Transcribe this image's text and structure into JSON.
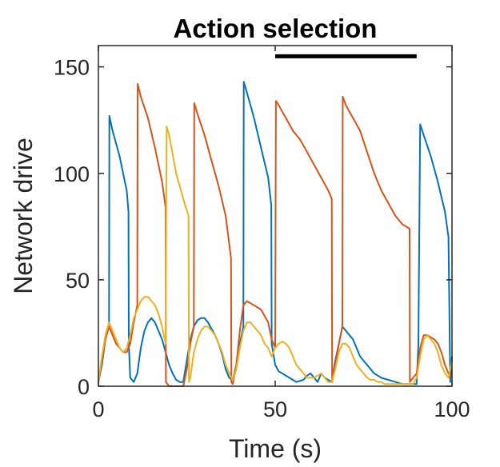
{
  "chart_data": {
    "type": "line",
    "title": "Action selection",
    "xlabel": "Time (s)",
    "ylabel": "Network drive",
    "xlim": [
      0,
      100
    ],
    "ylim": [
      0,
      160
    ],
    "xticks": [
      "0",
      "50",
      "100"
    ],
    "yticks": [
      "0",
      "50",
      "100",
      "150"
    ],
    "grid": false,
    "legend": "none",
    "annotation_bar": {
      "x": [
        50,
        90
      ],
      "y": 155
    },
    "series": [
      {
        "color": "#0072BD",
        "points": [
          [
            0,
            2
          ],
          [
            1,
            10
          ],
          [
            2,
            22
          ],
          [
            3,
            30
          ],
          [
            3.1,
            127
          ],
          [
            4,
            120
          ],
          [
            6,
            108
          ],
          [
            7,
            100
          ],
          [
            8,
            92
          ],
          [
            8.5,
            82
          ],
          [
            8.6,
            20
          ],
          [
            9,
            4
          ],
          [
            10,
            2
          ],
          [
            11,
            6
          ],
          [
            12,
            18
          ],
          [
            13,
            26
          ],
          [
            14,
            30
          ],
          [
            15,
            32
          ],
          [
            16,
            30
          ],
          [
            17,
            26
          ],
          [
            18,
            22
          ],
          [
            19,
            16
          ],
          [
            20,
            10
          ],
          [
            21,
            6
          ],
          [
            22,
            3
          ],
          [
            23,
            2
          ],
          [
            24,
            2
          ],
          [
            25,
            12
          ],
          [
            26,
            22
          ],
          [
            27,
            28
          ],
          [
            28,
            31
          ],
          [
            29,
            32
          ],
          [
            30,
            32
          ],
          [
            31,
            30
          ],
          [
            32,
            27
          ],
          [
            33,
            24
          ],
          [
            34,
            20
          ],
          [
            35,
            15
          ],
          [
            36,
            8
          ],
          [
            37,
            4
          ],
          [
            38,
            3
          ],
          [
            39,
            10
          ],
          [
            40,
            20
          ],
          [
            41,
            28
          ],
          [
            41.1,
            143
          ],
          [
            42,
            138
          ],
          [
            44,
            126
          ],
          [
            46,
            112
          ],
          [
            48,
            98
          ],
          [
            48.9,
            85
          ],
          [
            49,
            20
          ],
          [
            50,
            10
          ],
          [
            51,
            7
          ],
          [
            52,
            6
          ],
          [
            53,
            5
          ],
          [
            54,
            4
          ],
          [
            55,
            3
          ],
          [
            56,
            2
          ],
          [
            58,
            3
          ],
          [
            59,
            5
          ],
          [
            60,
            6
          ],
          [
            61,
            4
          ],
          [
            62,
            2
          ],
          [
            63,
            6
          ],
          [
            64,
            4
          ],
          [
            65,
            3
          ],
          [
            66,
            2
          ],
          [
            67,
            12
          ],
          [
            68,
            20
          ],
          [
            69,
            28
          ],
          [
            70,
            26
          ],
          [
            71,
            24
          ],
          [
            72,
            22
          ],
          [
            73,
            18
          ],
          [
            74,
            14
          ],
          [
            75,
            12
          ],
          [
            76,
            10
          ],
          [
            77,
            8
          ],
          [
            78,
            6
          ],
          [
            79,
            5
          ],
          [
            80,
            4
          ],
          [
            82,
            3
          ],
          [
            84,
            2
          ],
          [
            86,
            1
          ],
          [
            88,
            1
          ],
          [
            89,
            1
          ],
          [
            90,
            1
          ],
          [
            90.5,
            20
          ],
          [
            91,
            123
          ],
          [
            92,
            118
          ],
          [
            94,
            108
          ],
          [
            96,
            96
          ],
          [
            98,
            82
          ],
          [
            99,
            70
          ],
          [
            99.5,
            2
          ],
          [
            100,
            14
          ]
        ]
      },
      {
        "color": "#D95319",
        "points": [
          [
            0,
            2
          ],
          [
            1,
            12
          ],
          [
            2,
            22
          ],
          [
            3,
            28
          ],
          [
            4,
            24
          ],
          [
            5,
            20
          ],
          [
            6,
            18
          ],
          [
            7,
            16
          ],
          [
            8,
            16
          ],
          [
            9,
            20
          ],
          [
            10,
            30
          ],
          [
            11,
            38
          ],
          [
            11.1,
            142
          ],
          [
            12,
            136
          ],
          [
            14,
            126
          ],
          [
            16,
            112
          ],
          [
            18,
            96
          ],
          [
            19,
            84
          ],
          [
            19.1,
            2
          ],
          [
            20,
            0
          ],
          [
            22,
            0
          ],
          [
            24,
            0
          ],
          [
            25,
            8
          ],
          [
            26,
            20
          ],
          [
            27,
            28
          ],
          [
            27.1,
            133
          ],
          [
            28,
            128
          ],
          [
            30,
            118
          ],
          [
            32,
            106
          ],
          [
            34,
            94
          ],
          [
            36,
            80
          ],
          [
            37.5,
            60
          ],
          [
            37.6,
            2
          ],
          [
            38,
            1
          ],
          [
            39,
            10
          ],
          [
            40,
            26
          ],
          [
            41,
            38
          ],
          [
            42,
            40
          ],
          [
            44,
            38
          ],
          [
            46,
            36
          ],
          [
            48,
            30
          ],
          [
            49,
            22
          ],
          [
            50,
            18
          ],
          [
            50.2,
            134
          ],
          [
            51,
            132
          ],
          [
            53,
            126
          ],
          [
            55,
            120
          ],
          [
            57,
            116
          ],
          [
            59,
            110
          ],
          [
            61,
            104
          ],
          [
            63,
            98
          ],
          [
            65,
            92
          ],
          [
            66,
            88
          ],
          [
            66.1,
            2
          ],
          [
            67,
            10
          ],
          [
            68,
            20
          ],
          [
            69,
            28
          ],
          [
            69.1,
            136
          ],
          [
            70,
            132
          ],
          [
            72,
            126
          ],
          [
            74,
            120
          ],
          [
            76,
            110
          ],
          [
            78,
            100
          ],
          [
            80,
            92
          ],
          [
            82,
            86
          ],
          [
            84,
            80
          ],
          [
            86,
            76
          ],
          [
            87,
            75
          ],
          [
            88,
            74
          ],
          [
            88.1,
            2
          ],
          [
            89,
            4
          ],
          [
            90,
            6
          ],
          [
            91,
            18
          ],
          [
            92,
            24
          ],
          [
            93,
            24
          ],
          [
            94,
            23
          ],
          [
            95,
            22
          ],
          [
            96,
            20
          ],
          [
            97,
            16
          ],
          [
            98,
            10
          ],
          [
            99,
            6
          ],
          [
            100,
            4
          ]
        ]
      },
      {
        "color": "#EDB120",
        "points": [
          [
            0,
            2
          ],
          [
            1,
            14
          ],
          [
            2,
            24
          ],
          [
            3,
            30
          ],
          [
            4,
            26
          ],
          [
            5,
            22
          ],
          [
            6,
            18
          ],
          [
            7,
            16
          ],
          [
            8,
            18
          ],
          [
            9,
            24
          ],
          [
            10,
            32
          ],
          [
            11,
            36
          ],
          [
            12,
            40
          ],
          [
            13,
            42
          ],
          [
            14,
            42
          ],
          [
            15,
            40
          ],
          [
            16,
            38
          ],
          [
            17,
            34
          ],
          [
            18,
            28
          ],
          [
            19,
            20
          ],
          [
            19.3,
            122
          ],
          [
            20,
            118
          ],
          [
            22,
            100
          ],
          [
            24,
            88
          ],
          [
            25.5,
            80
          ],
          [
            25.6,
            2
          ],
          [
            26,
            4
          ],
          [
            27,
            16
          ],
          [
            28,
            22
          ],
          [
            29,
            26
          ],
          [
            30,
            28
          ],
          [
            31,
            28
          ],
          [
            32,
            26
          ],
          [
            33,
            24
          ],
          [
            34,
            20
          ],
          [
            35,
            16
          ],
          [
            36,
            10
          ],
          [
            37,
            6
          ],
          [
            38,
            3
          ],
          [
            39,
            8
          ],
          [
            40,
            18
          ],
          [
            41,
            26
          ],
          [
            42,
            30
          ],
          [
            43,
            30
          ],
          [
            44,
            28
          ],
          [
            45,
            26
          ],
          [
            46,
            24
          ],
          [
            47,
            20
          ],
          [
            48,
            18
          ],
          [
            49,
            14
          ],
          [
            50,
            18
          ],
          [
            51,
            20
          ],
          [
            52,
            21
          ],
          [
            53,
            20
          ],
          [
            54,
            18
          ],
          [
            55,
            14
          ],
          [
            56,
            10
          ],
          [
            57,
            8
          ],
          [
            58,
            6
          ],
          [
            59,
            4
          ],
          [
            60,
            4
          ],
          [
            61,
            4
          ],
          [
            62,
            5
          ],
          [
            63,
            6
          ],
          [
            64,
            4
          ],
          [
            65,
            2
          ],
          [
            66,
            2
          ],
          [
            67,
            8
          ],
          [
            68,
            16
          ],
          [
            69,
            20
          ],
          [
            70,
            20
          ],
          [
            71,
            18
          ],
          [
            72,
            14
          ],
          [
            73,
            10
          ],
          [
            74,
            8
          ],
          [
            75,
            6
          ],
          [
            76,
            4
          ],
          [
            77,
            3
          ],
          [
            78,
            3
          ],
          [
            79,
            2
          ],
          [
            80,
            2
          ],
          [
            81,
            1
          ],
          [
            82,
            1
          ],
          [
            84,
            1
          ],
          [
            86,
            1
          ],
          [
            88,
            1
          ],
          [
            89,
            1
          ],
          [
            90,
            4
          ],
          [
            91,
            14
          ],
          [
            92,
            22
          ],
          [
            93,
            24
          ],
          [
            94,
            22
          ],
          [
            95,
            20
          ],
          [
            96,
            16
          ],
          [
            97,
            10
          ],
          [
            98,
            6
          ],
          [
            99,
            4
          ],
          [
            100,
            12
          ]
        ]
      }
    ]
  }
}
